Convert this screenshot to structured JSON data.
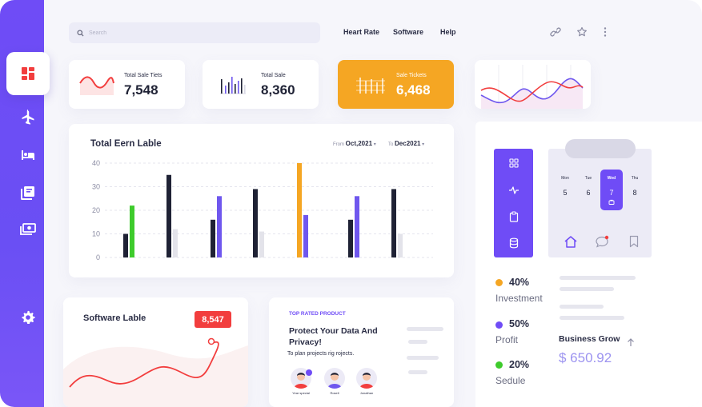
{
  "search": {
    "placeholder": "Search"
  },
  "nav": [
    {
      "label": "Heart Rate"
    },
    {
      "label": "Software"
    },
    {
      "label": "Help"
    }
  ],
  "stats": [
    {
      "label": "Total Sale Tiets",
      "value": "7,548"
    },
    {
      "label": "Total Sale",
      "value": "8,360"
    },
    {
      "label": "Sale Tickets",
      "value": "6,468"
    }
  ],
  "main_chart": {
    "title": "Total Eern Lable",
    "from_label": "From",
    "from_value": "Oct,2021",
    "to_label": "To",
    "to_value": "Dec2021"
  },
  "chart_data": {
    "type": "bar",
    "title": "Total Eern Lable",
    "ylim": [
      0,
      40
    ],
    "yticks": [
      "40",
      "30",
      "20",
      "10",
      "0"
    ],
    "grid": true,
    "groups": [
      [
        {
          "value": 10,
          "color": "#1f2235"
        },
        {
          "value": 22,
          "color": "#3ecb2c"
        }
      ],
      [
        {
          "value": 35,
          "color": "#1f2235"
        },
        {
          "value": 12,
          "color": "#e3e3ea"
        }
      ],
      [
        {
          "value": 16,
          "color": "#1f2235"
        },
        {
          "value": 26,
          "color": "#6f57ee"
        }
      ],
      [
        {
          "value": 29,
          "color": "#1f2235"
        },
        {
          "value": 11,
          "color": "#e3e3ea"
        }
      ],
      [
        {
          "value": 40,
          "color": "#f5a623"
        },
        {
          "value": 18,
          "color": "#6f57ee"
        }
      ],
      [
        {
          "value": 16,
          "color": "#1f2235"
        },
        {
          "value": 26,
          "color": "#6f57ee"
        }
      ],
      [
        {
          "value": 29,
          "color": "#1f2235"
        },
        {
          "value": 10,
          "color": "#e3e3ea"
        }
      ]
    ]
  },
  "software_card": {
    "title": "Software Lable",
    "badge": "8,547"
  },
  "product_card": {
    "label": "TOP RATED PRODUCT",
    "title": "Protect Your Data And Privacy!",
    "subtitle": "To plan projects rig rojects.",
    "avatars": [
      {
        "name": "Year special"
      },
      {
        "name": "Rosell"
      },
      {
        "name": "Jonathan"
      }
    ]
  },
  "calendar": {
    "days": [
      {
        "day": "Mon",
        "num": "5"
      },
      {
        "day": "Tue",
        "num": "6"
      },
      {
        "day": "Wed",
        "num": "7"
      },
      {
        "day": "Thu",
        "num": "8"
      }
    ]
  },
  "legend": [
    {
      "pct": "40%",
      "name": "Investment",
      "color": "#f5a623"
    },
    {
      "pct": "50%",
      "name": "Profit",
      "color": "#6f4cf6"
    },
    {
      "pct": "20%",
      "name": "Sedule",
      "color": "#3ecb2c"
    }
  ],
  "business": {
    "title": "Business Grow",
    "value": "$ 650.92"
  },
  "colors": {
    "accent": "#6f4cf6",
    "orange": "#f5a623",
    "red": "#f23e3e",
    "green": "#3ecb2c"
  },
  "icons": {
    "sidebar": [
      "dashboard-icon",
      "airplane-icon",
      "bed-icon",
      "library-icon",
      "money-icon",
      "settings-icon"
    ],
    "top": [
      "link-icon",
      "star-icon",
      "more-vertical-icon"
    ],
    "vertical_bar": [
      "grid-icon",
      "activity-icon",
      "clipboard-icon",
      "database-icon"
    ],
    "calendar_bottom": [
      "home-icon",
      "chat-icon",
      "bookmark-icon"
    ]
  }
}
